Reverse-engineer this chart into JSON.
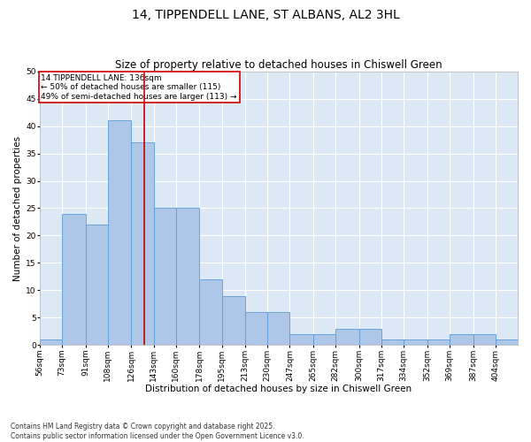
{
  "title": "14, TIPPENDELL LANE, ST ALBANS, AL2 3HL",
  "subtitle": "Size of property relative to detached houses in Chiswell Green",
  "xlabel": "Distribution of detached houses by size in Chiswell Green",
  "ylabel": "Number of detached properties",
  "bin_labels": [
    "56sqm",
    "73sqm",
    "91sqm",
    "108sqm",
    "126sqm",
    "143sqm",
    "160sqm",
    "178sqm",
    "195sqm",
    "213sqm",
    "230sqm",
    "247sqm",
    "265sqm",
    "282sqm",
    "300sqm",
    "317sqm",
    "334sqm",
    "352sqm",
    "369sqm",
    "387sqm",
    "404sqm"
  ],
  "bin_edges": [
    56,
    73,
    91,
    108,
    126,
    143,
    160,
    178,
    195,
    213,
    230,
    247,
    265,
    282,
    300,
    317,
    334,
    352,
    369,
    387,
    404
  ],
  "bar_heights": [
    1,
    24,
    22,
    41,
    37,
    25,
    25,
    12,
    9,
    6,
    6,
    2,
    2,
    3,
    3,
    1,
    1,
    1,
    2,
    2,
    1
  ],
  "bar_color": "#aec6e8",
  "bar_edge_color": "#5b9bd5",
  "reference_line_x": 136,
  "reference_line_color": "#cc0000",
  "annotation_text": "14 TIPPENDELL LANE: 136sqm\n← 50% of detached houses are smaller (115)\n49% of semi-detached houses are larger (113) →",
  "annotation_box_color": "#cc0000",
  "ylim": [
    0,
    50
  ],
  "yticks": [
    0,
    5,
    10,
    15,
    20,
    25,
    30,
    35,
    40,
    45,
    50
  ],
  "background_color": "#dce9f5",
  "footnote": "Contains HM Land Registry data © Crown copyright and database right 2025.\nContains public sector information licensed under the Open Government Licence v3.0.",
  "title_fontsize": 10,
  "subtitle_fontsize": 8.5,
  "xlabel_fontsize": 7.5,
  "ylabel_fontsize": 7.5,
  "tick_fontsize": 6.5,
  "annotation_fontsize": 6.5,
  "footnote_fontsize": 5.5
}
